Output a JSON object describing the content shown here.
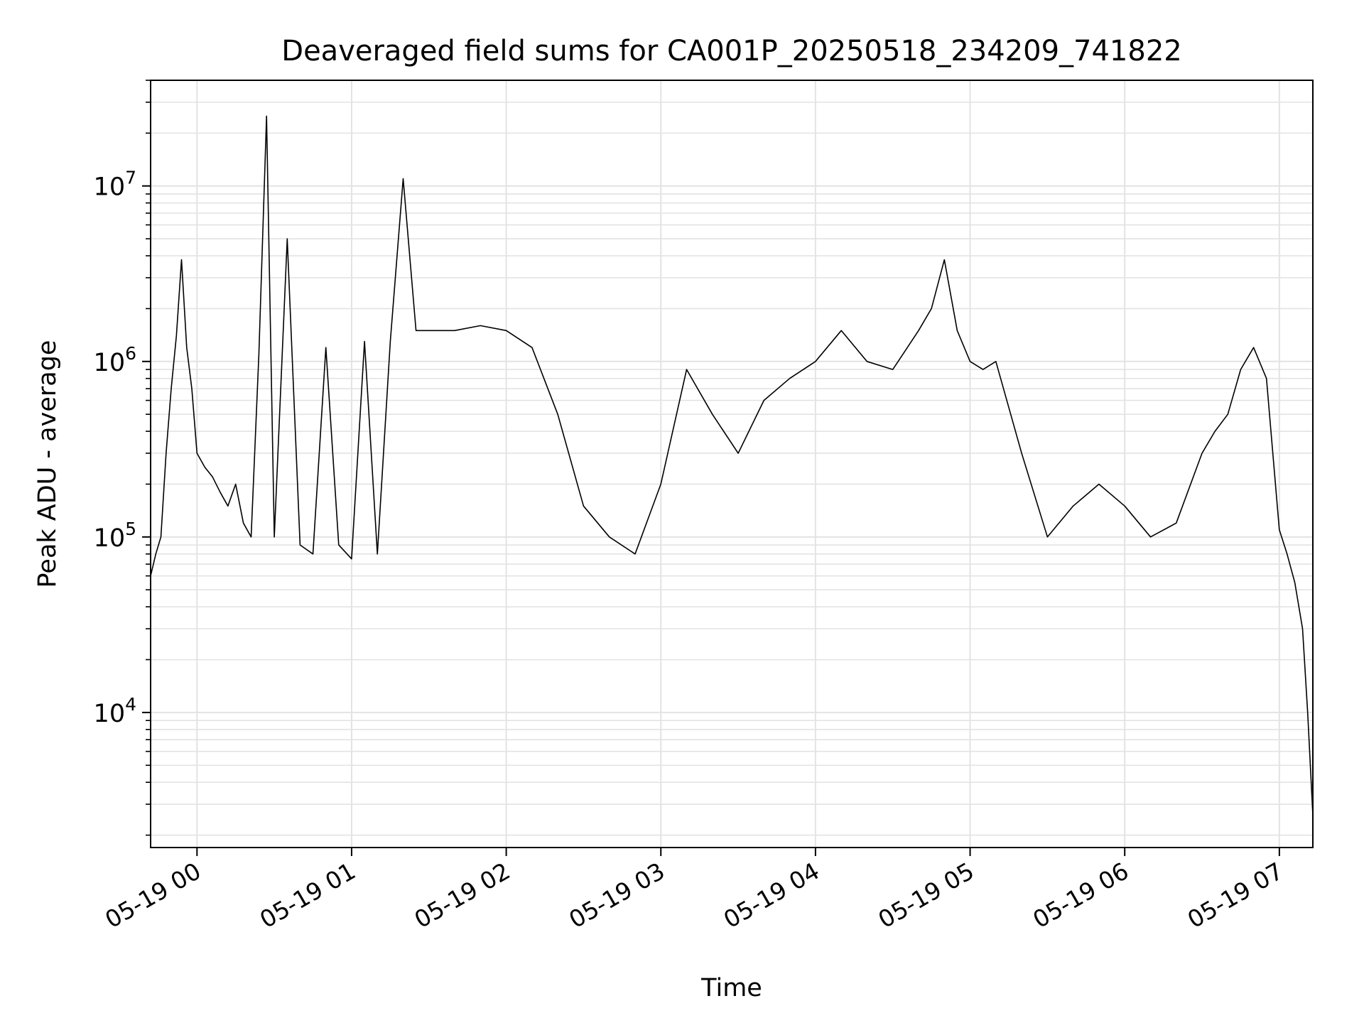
{
  "chart_data": {
    "type": "line",
    "title": "Deaveraged field sums for CA001P_20250518_234209_741822",
    "xlabel": "Time",
    "ylabel": "Peak ADU - average",
    "yscale": "log",
    "xlim": [
      "2025-05-18 23:42",
      "2025-05-19 07:13"
    ],
    "ylim": [
      1700,
      40000000
    ],
    "grid": true,
    "legend": "none",
    "line_color": "#000000",
    "x_ticks": [
      "2025-05-19 00:00",
      "2025-05-19 01:00",
      "2025-05-19 02:00",
      "2025-05-19 03:00",
      "2025-05-19 04:00",
      "2025-05-19 05:00",
      "2025-05-19 06:00",
      "2025-05-19 07:00"
    ],
    "x_tick_labels": [
      "05-19 00",
      "05-19 01",
      "05-19 02",
      "05-19 03",
      "05-19 04",
      "05-19 05",
      "05-19 06",
      "05-19 07"
    ],
    "y_ticks": [
      10000,
      100000,
      1000000,
      10000000
    ],
    "y_tick_labels": [
      {
        "base": "10",
        "exp": "4"
      },
      {
        "base": "10",
        "exp": "5"
      },
      {
        "base": "10",
        "exp": "6"
      },
      {
        "base": "10",
        "exp": "7"
      }
    ],
    "series": [
      {
        "x": [
          "2025-05-18 23:42",
          "2025-05-18 23:44",
          "2025-05-18 23:46",
          "2025-05-18 23:48",
          "2025-05-18 23:50",
          "2025-05-18 23:52",
          "2025-05-18 23:54",
          "2025-05-18 23:56",
          "2025-05-18 23:58",
          "2025-05-19 00:00",
          "2025-05-19 00:03",
          "2025-05-19 00:06",
          "2025-05-19 00:09",
          "2025-05-19 00:12",
          "2025-05-19 00:15",
          "2025-05-19 00:18",
          "2025-05-19 00:21",
          "2025-05-19 00:24",
          "2025-05-19 00:27",
          "2025-05-19 00:30",
          "2025-05-19 00:35",
          "2025-05-19 00:40",
          "2025-05-19 00:45",
          "2025-05-19 00:50",
          "2025-05-19 00:55",
          "2025-05-19 01:00",
          "2025-05-19 01:05",
          "2025-05-19 01:10",
          "2025-05-19 01:15",
          "2025-05-19 01:20",
          "2025-05-19 01:25",
          "2025-05-19 01:30",
          "2025-05-19 01:40",
          "2025-05-19 01:50",
          "2025-05-19 02:00",
          "2025-05-19 02:10",
          "2025-05-19 02:20",
          "2025-05-19 02:30",
          "2025-05-19 02:40",
          "2025-05-19 02:50",
          "2025-05-19 03:00",
          "2025-05-19 03:10",
          "2025-05-19 03:20",
          "2025-05-19 03:30",
          "2025-05-19 03:40",
          "2025-05-19 03:50",
          "2025-05-19 04:00",
          "2025-05-19 04:10",
          "2025-05-19 04:20",
          "2025-05-19 04:30",
          "2025-05-19 04:40",
          "2025-05-19 04:45",
          "2025-05-19 04:50",
          "2025-05-19 04:55",
          "2025-05-19 05:00",
          "2025-05-19 05:05",
          "2025-05-19 05:10",
          "2025-05-19 05:20",
          "2025-05-19 05:30",
          "2025-05-19 05:40",
          "2025-05-19 05:50",
          "2025-05-19 06:00",
          "2025-05-19 06:10",
          "2025-05-19 06:20",
          "2025-05-19 06:30",
          "2025-05-19 06:35",
          "2025-05-19 06:40",
          "2025-05-19 06:45",
          "2025-05-19 06:50",
          "2025-05-19 06:55",
          "2025-05-19 07:00",
          "2025-05-19 07:03",
          "2025-05-19 07:06",
          "2025-05-19 07:09",
          "2025-05-19 07:11",
          "2025-05-19 07:13"
        ],
        "y": [
          60000,
          80000,
          100000,
          300000,
          700000,
          1400000,
          3800000,
          1200000,
          700000,
          300000,
          250000,
          220000,
          180000,
          150000,
          200000,
          120000,
          100000,
          1100000,
          25000000,
          100000,
          5000000,
          90000,
          80000,
          1200000,
          90000,
          75000,
          1300000,
          80000,
          1300000,
          11000000,
          1500000,
          1500000,
          1500000,
          1600000,
          1500000,
          1200000,
          500000,
          150000,
          100000,
          80000,
          200000,
          900000,
          500000,
          300000,
          600000,
          800000,
          1000000,
          1500000,
          1000000,
          900000,
          1500000,
          2000000,
          3800000,
          1500000,
          1000000,
          900000,
          1000000,
          300000,
          100000,
          150000,
          200000,
          150000,
          100000,
          120000,
          300000,
          400000,
          500000,
          900000,
          1200000,
          800000,
          110000,
          80000,
          55000,
          30000,
          10000,
          2600
        ]
      }
    ]
  }
}
